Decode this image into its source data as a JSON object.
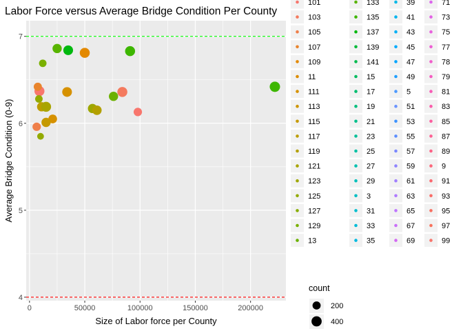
{
  "chart_data": {
    "type": "scatter",
    "title": "Labor Force versus Average Bridge Condition Per County",
    "xlabel": "Size of Labor force per County",
    "ylabel": "Average Bridge Condition (0-9)",
    "xlim": [
      -3000,
      232000
    ],
    "ylim": [
      3.96,
      7.18
    ],
    "x_ticks": [
      0,
      50000,
      100000,
      150000,
      200000
    ],
    "x_tick_labels": [
      "0",
      "50000",
      "100000",
      "150000",
      "200000"
    ],
    "y_ticks": [
      4,
      5,
      6,
      7
    ],
    "y_tick_labels": [
      "4",
      "5",
      "6",
      "7"
    ],
    "grid": true,
    "reference_lines": [
      {
        "y": 7,
        "color": "#00ff00",
        "style": "dashed"
      },
      {
        "y": 4,
        "color": "#ff0000",
        "style": "dashed"
      }
    ],
    "color_legend": {
      "position": "right",
      "columns": [
        [
          {
            "label": "101",
            "color": "#F8766D"
          },
          {
            "label": "103",
            "color": "#F47A5E"
          },
          {
            "label": "105",
            "color": "#EF7F4A"
          },
          {
            "label": "107",
            "color": "#E8842C"
          },
          {
            "label": "109",
            "color": "#E38900"
          },
          {
            "label": "11",
            "color": "#DD8D00"
          },
          {
            "label": "111",
            "color": "#D69100"
          },
          {
            "label": "113",
            "color": "#CE9500"
          },
          {
            "label": "115",
            "color": "#C59900"
          },
          {
            "label": "117",
            "color": "#BC9D00"
          },
          {
            "label": "119",
            "color": "#B3A000"
          },
          {
            "label": "121",
            "color": "#A9A400"
          },
          {
            "label": "123",
            "color": "#9EA700"
          },
          {
            "label": "125",
            "color": "#93AA00"
          },
          {
            "label": "127",
            "color": "#87AD00"
          },
          {
            "label": "129",
            "color": "#7AB000"
          },
          {
            "label": "13",
            "color": "#6BB100"
          }
        ],
        [
          {
            "label": "133",
            "color": "#58B400"
          },
          {
            "label": "135",
            "color": "#3DB600"
          },
          {
            "label": "137",
            "color": "#00B80E"
          },
          {
            "label": "139",
            "color": "#00BA38"
          },
          {
            "label": "141",
            "color": "#00BB4E"
          },
          {
            "label": "15",
            "color": "#00BC5F"
          },
          {
            "label": "17",
            "color": "#00BE6F"
          },
          {
            "label": "19",
            "color": "#00BF7D"
          },
          {
            "label": "21",
            "color": "#00C08B"
          },
          {
            "label": "23",
            "color": "#00C098"
          },
          {
            "label": "25",
            "color": "#00C1A4"
          },
          {
            "label": "27",
            "color": "#00C1B0"
          },
          {
            "label": "29",
            "color": "#00C0BB"
          },
          {
            "label": "3",
            "color": "#00BFC4"
          },
          {
            "label": "31",
            "color": "#00BECE"
          },
          {
            "label": "33",
            "color": "#00BCD8"
          },
          {
            "label": "35",
            "color": "#00BAE0"
          }
        ],
        [
          {
            "label": "39",
            "color": "#00B8E7"
          },
          {
            "label": "41",
            "color": "#00B4EF"
          },
          {
            "label": "43",
            "color": "#00B0F6"
          },
          {
            "label": "45",
            "color": "#00ABFD"
          },
          {
            "label": "47",
            "color": "#00A5FF"
          },
          {
            "label": "49",
            "color": "#1F9FFF"
          },
          {
            "label": "5",
            "color": "#4D9AFF"
          },
          {
            "label": "51",
            "color": "#6B94FF"
          },
          {
            "label": "53",
            "color": "#3D93FF"
          },
          {
            "label": "55",
            "color": "#5C8EFF"
          },
          {
            "label": "57",
            "color": "#7A88FF"
          },
          {
            "label": "59",
            "color": "#8F84FF"
          },
          {
            "label": "61",
            "color": "#A17FFF"
          },
          {
            "label": "63",
            "color": "#AF7AFF"
          },
          {
            "label": "65",
            "color": "#BE75FF"
          },
          {
            "label": "67",
            "color": "#C96FF9"
          },
          {
            "label": "69",
            "color": "#D36AF3"
          }
        ],
        [
          {
            "label": "71",
            "color": "#DB66EC"
          },
          {
            "label": "73",
            "color": "#E263E5"
          },
          {
            "label": "75",
            "color": "#E861DD"
          },
          {
            "label": "77",
            "color": "#ED5ED4"
          },
          {
            "label": "78",
            "color": "#F15DCB"
          },
          {
            "label": "79",
            "color": "#F55CC1"
          },
          {
            "label": "81",
            "color": "#F85CB6"
          },
          {
            "label": "83",
            "color": "#FA5DAB"
          },
          {
            "label": "85",
            "color": "#FC5E9F"
          },
          {
            "label": "87",
            "color": "#FD6093"
          },
          {
            "label": "89",
            "color": "#FD6387"
          },
          {
            "label": "9",
            "color": "#FC667B"
          },
          {
            "label": "91",
            "color": "#FB6970"
          },
          {
            "label": "93",
            "color": "#F96C67"
          },
          {
            "label": "95",
            "color": "#F86F60"
          },
          {
            "label": "97",
            "color": "#F8725C"
          },
          {
            "label": "99",
            "color": "#F8766D"
          }
        ]
      ]
    },
    "size_legend": {
      "title": "count",
      "entries": [
        {
          "label": "200",
          "size": 200
        },
        {
          "label": "400",
          "size": 400
        }
      ]
    },
    "points": [
      {
        "x": 9000,
        "y": 6.37,
        "size": 380,
        "color": "#F8766D"
      },
      {
        "x": 7500,
        "y": 6.42,
        "size": 200,
        "color": "#E8842C"
      },
      {
        "x": 12000,
        "y": 6.69,
        "size": 150,
        "color": "#7AB000"
      },
      {
        "x": 8500,
        "y": 6.28,
        "size": 150,
        "color": "#93AA00"
      },
      {
        "x": 11000,
        "y": 6.19,
        "size": 300,
        "color": "#BC9D00"
      },
      {
        "x": 15000,
        "y": 6.19,
        "size": 380,
        "color": "#A9A400"
      },
      {
        "x": 21000,
        "y": 6.05,
        "size": 250,
        "color": "#D69100"
      },
      {
        "x": 15000,
        "y": 6.01,
        "size": 300,
        "color": "#C59900"
      },
      {
        "x": 6500,
        "y": 5.96,
        "size": 220,
        "color": "#EF7F4A"
      },
      {
        "x": 10000,
        "y": 5.85,
        "size": 100,
        "color": "#93AA00"
      },
      {
        "x": 25000,
        "y": 6.86,
        "size": 300,
        "color": "#58B400"
      },
      {
        "x": 35000,
        "y": 6.84,
        "size": 350,
        "color": "#00B80E"
      },
      {
        "x": 34000,
        "y": 6.36,
        "size": 350,
        "color": "#D69100"
      },
      {
        "x": 50000,
        "y": 6.81,
        "size": 380,
        "color": "#E38900"
      },
      {
        "x": 57000,
        "y": 6.17,
        "size": 300,
        "color": "#9EA700"
      },
      {
        "x": 61000,
        "y": 6.15,
        "size": 320,
        "color": "#B3A000"
      },
      {
        "x": 76000,
        "y": 6.31,
        "size": 300,
        "color": "#6BB100"
      },
      {
        "x": 84000,
        "y": 6.36,
        "size": 380,
        "color": "#F47A5E"
      },
      {
        "x": 91000,
        "y": 6.83,
        "size": 380,
        "color": "#3DB600"
      },
      {
        "x": 98000,
        "y": 6.13,
        "size": 220,
        "color": "#F8766D"
      },
      {
        "x": 222000,
        "y": 6.42,
        "size": 420,
        "color": "#3DB600"
      }
    ]
  }
}
